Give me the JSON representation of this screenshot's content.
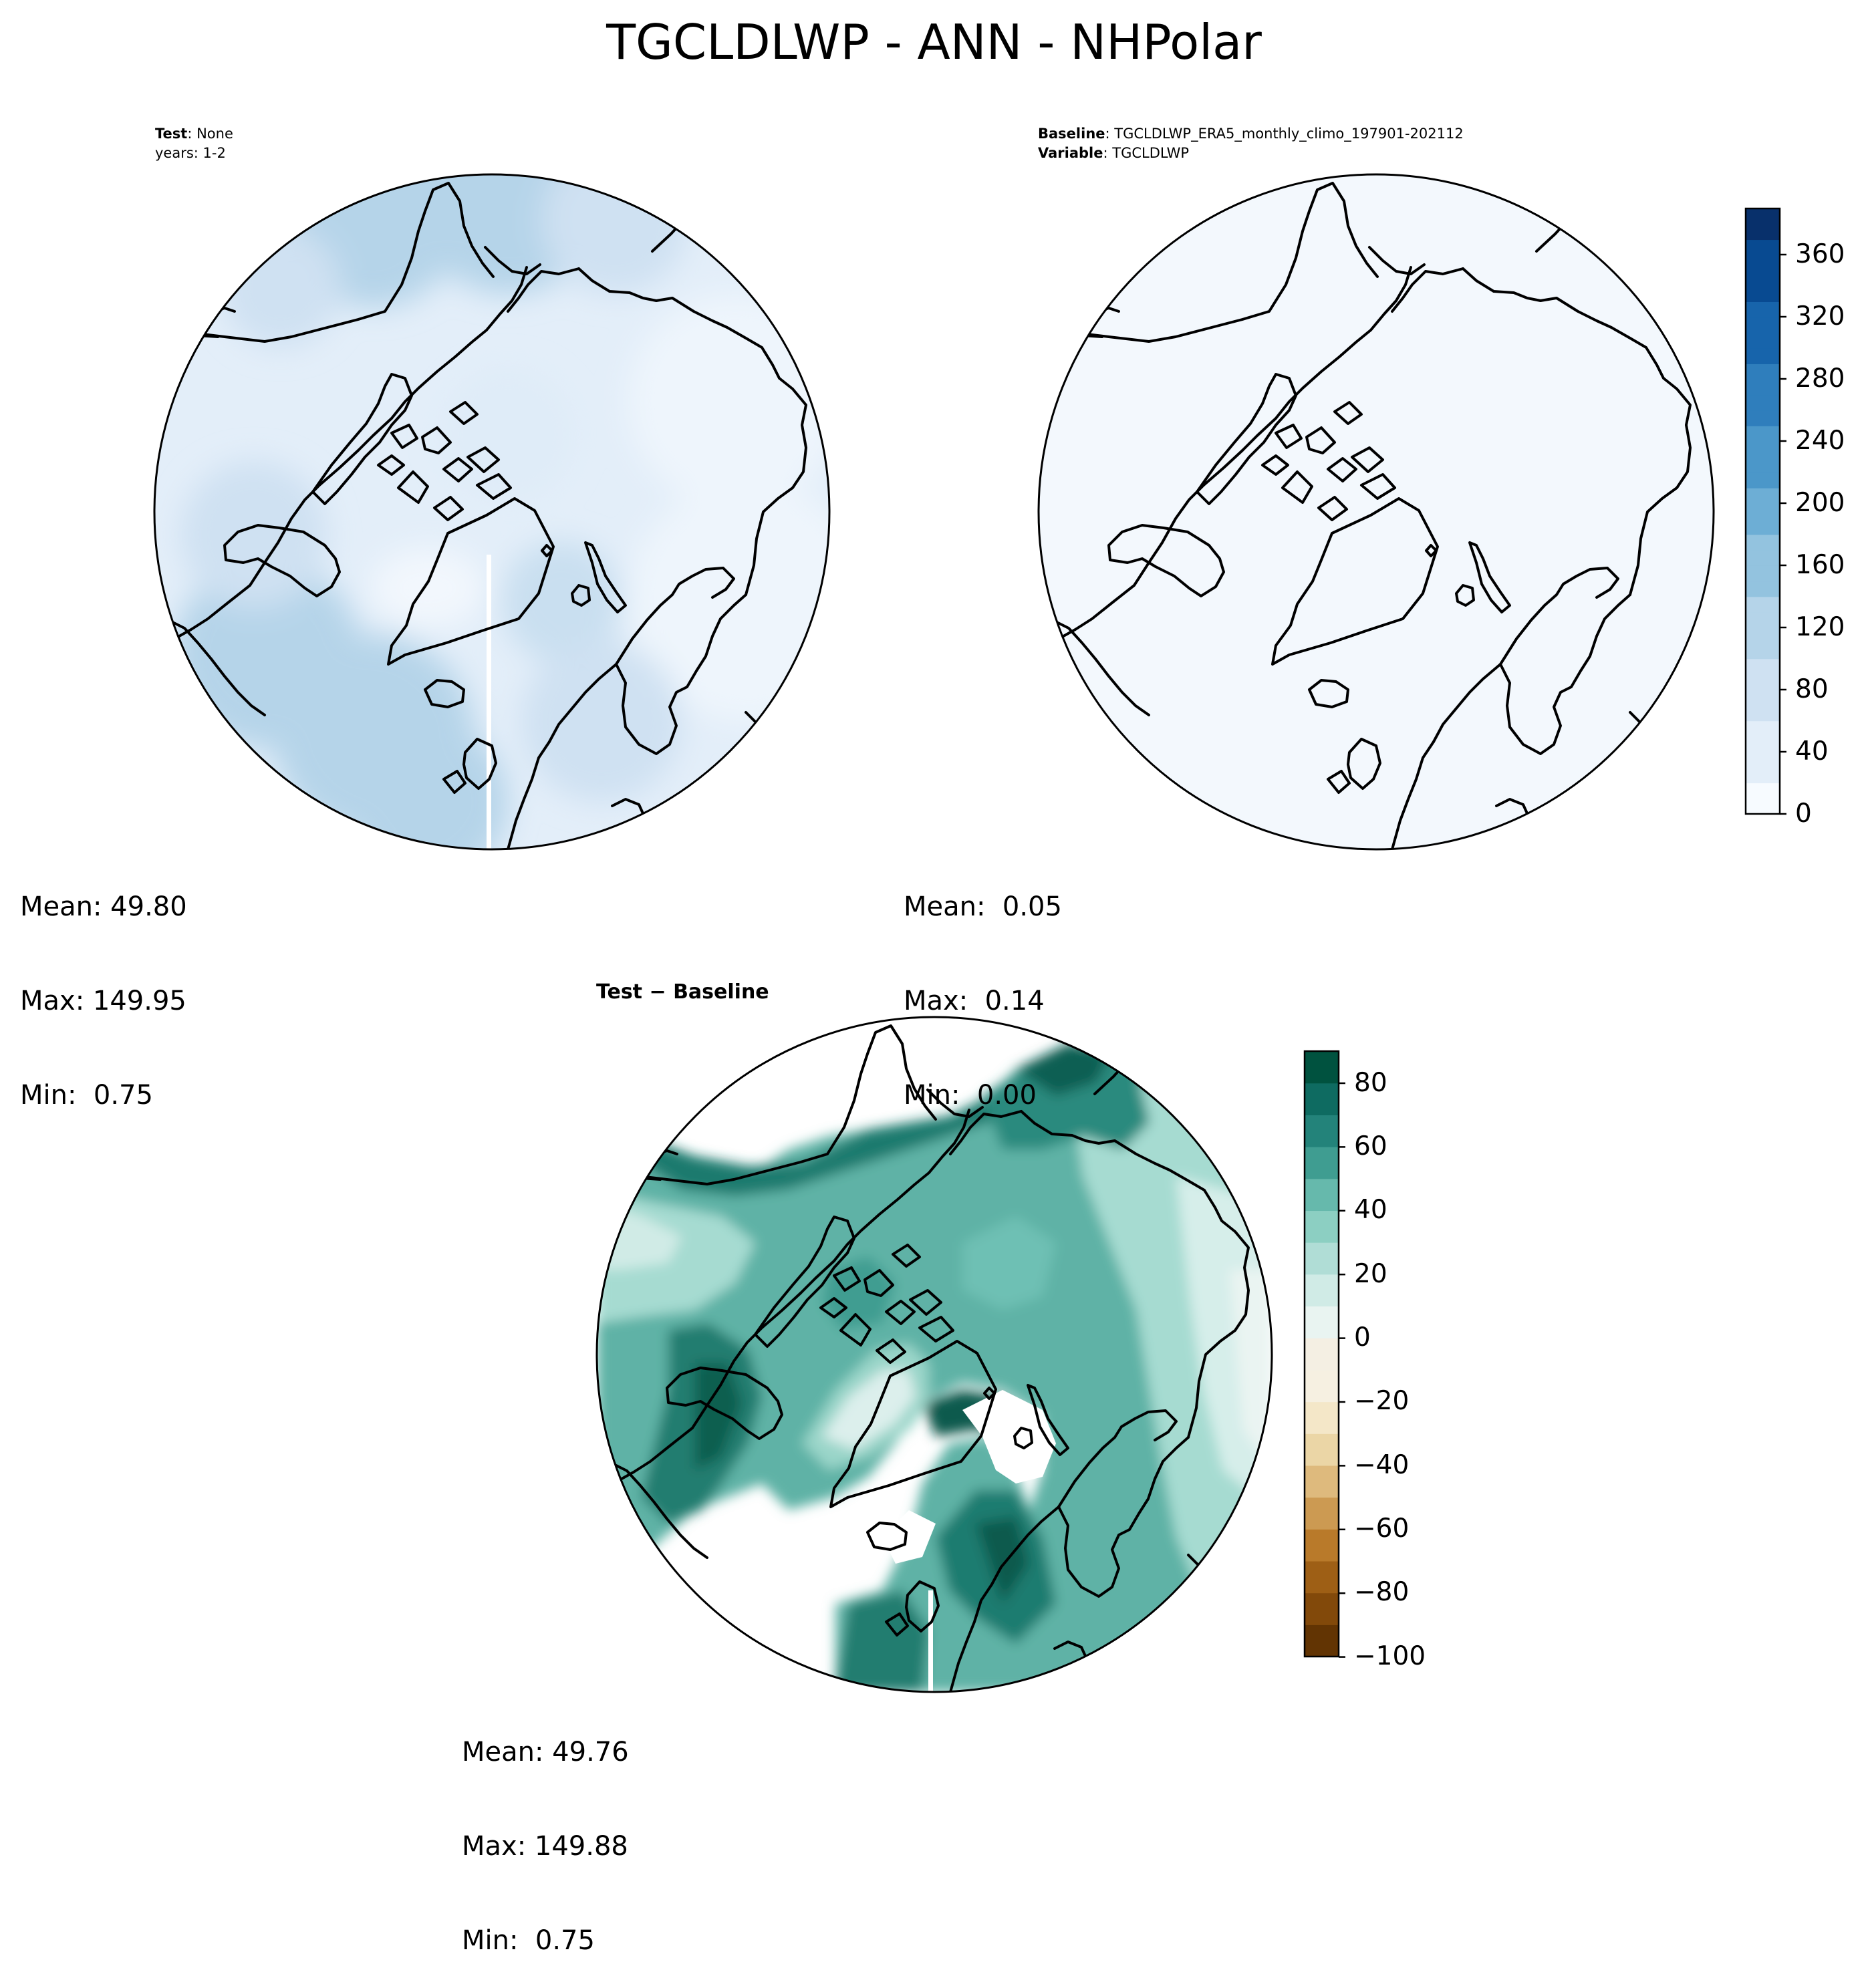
{
  "figure": {
    "title": "TGCLDLWP - ANN - NHPolar"
  },
  "panels": {
    "test": {
      "header_line1_bold": "Test",
      "header_line1_rest": ": None",
      "header_line2": "years: 1-2",
      "stats": {
        "mean": "Mean: 49.80",
        "max": "Max: 149.95",
        "min": "Min:  0.75"
      }
    },
    "baseline": {
      "header_line1_bold": "Baseline",
      "header_line1_rest": ": TGCLDLWP_ERA5_monthly_climo_197901-202112",
      "header_line2_bold": "Variable",
      "header_line2_rest": ": TGCLDLWP",
      "stats": {
        "mean": "Mean:  0.05",
        "max": "Max:  0.14",
        "min": "Min:  0.00"
      }
    },
    "difference": {
      "subtitle_a": "Test",
      "subtitle_sep": " − ",
      "subtitle_b": "Baseline",
      "stats": {
        "mean": "Mean: 49.76",
        "max": "Max: 149.88",
        "min": "Min:  0.75"
      }
    }
  },
  "chart_data": [
    {
      "type": "heatmap",
      "name": "Test",
      "projection": "north polar stereographic",
      "mean": 49.8,
      "max": 149.95,
      "min": 0.75,
      "colormap": "Blues",
      "colorbar": {
        "ticks": [
          "0",
          "40",
          "80",
          "120",
          "160",
          "200",
          "240",
          "280",
          "320",
          "360"
        ],
        "range": [
          0,
          390
        ]
      }
    },
    {
      "type": "heatmap",
      "name": "Baseline",
      "projection": "north polar stereographic",
      "mean": 0.05,
      "max": 0.14,
      "min": 0.0,
      "colormap": "Blues"
    },
    {
      "type": "heatmap",
      "name": "Test − Baseline",
      "projection": "north polar stereographic",
      "mean": 49.76,
      "max": 149.88,
      "min": 0.75,
      "colormap": "BrBG",
      "colorbar": {
        "ticks": [
          "80",
          "60",
          "40",
          "20",
          "0",
          "−20",
          "−40",
          "−60",
          "−80",
          "−100"
        ],
        "range": [
          -100,
          90
        ]
      }
    }
  ],
  "colors": {
    "blues": [
      "#f7fbff",
      "#e3eef9",
      "#cfe1f2",
      "#b5d4e9",
      "#93c3df",
      "#6daed5",
      "#4b97c9",
      "#2f7ebc",
      "#1764ab",
      "#084a91",
      "#08306b"
    ],
    "brbg_pos": [
      "#e9f4f1",
      "#d0ebe6",
      "#b0ddd6",
      "#8ccfc2",
      "#66b9ac",
      "#3f9d91",
      "#23837a",
      "#0e6b61",
      "#00523f"
    ],
    "brbg_neg": [
      "#f6f0e1",
      "#f4e7c8",
      "#ebd6a6",
      "#deba7d",
      "#cc9a52",
      "#b97a2a",
      "#9e5f15",
      "#82490a",
      "#623403"
    ]
  }
}
